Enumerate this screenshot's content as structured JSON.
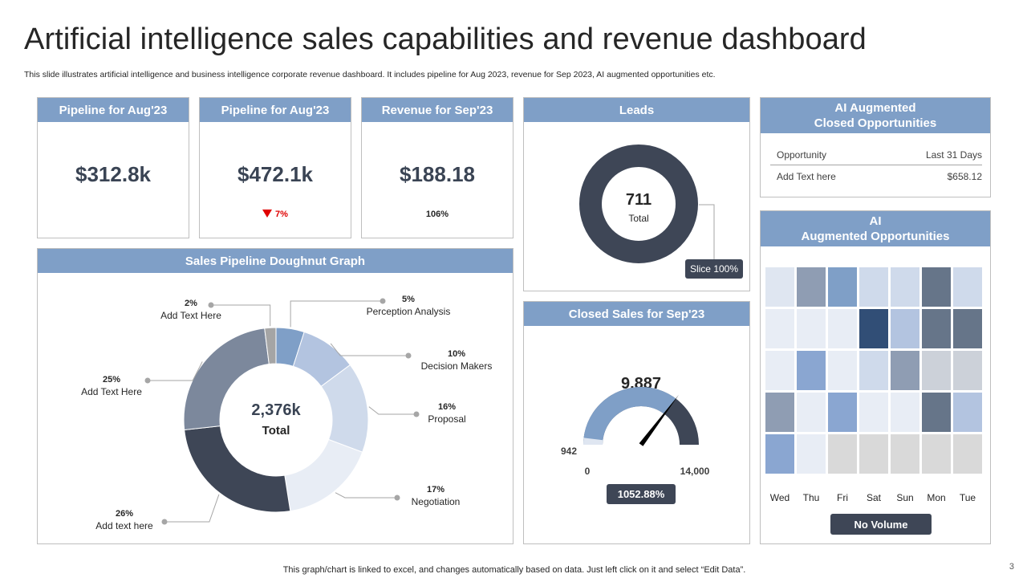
{
  "title": "Artificial intelligence sales capabilities and revenue dashboard",
  "subtitle": "This slide illustrates artificial intelligence and business intelligence corporate revenue dashboard. It includes pipeline for Aug 2023, revenue for Sep 2023, AI  augmented opportunities etc.",
  "kpis": [
    {
      "header": "Pipeline for Aug'23",
      "value": "$312.8k",
      "change": ""
    },
    {
      "header": "Pipeline for  Aug'23",
      "value": "$472.1k",
      "change": "7%"
    },
    {
      "header": "Revenue for Sep'23",
      "value": "$188.18",
      "change": "106%"
    }
  ],
  "leads": {
    "header": "Leads",
    "value": "711",
    "label": "Total",
    "slice_label": "Slice 100%"
  },
  "closed_sales": {
    "header": "Closed Sales for Sep'23",
    "value": "9,887",
    "min": "0",
    "max": "14,000",
    "marker": "942",
    "percent": "1052.88%",
    "fill_fraction": 0.706
  },
  "ai_closed": {
    "header_line1": "AI Augmented",
    "header_line2": "Closed Opportunities",
    "col1": "Opportunity",
    "col2": "Last 31 Days",
    "row_label": "Add Text here",
    "row_value": "$658.12"
  },
  "ai_opps": {
    "header_line1": "AI",
    "header_line2": "Augmented Opportunities",
    "days": [
      "Wed",
      "Thu",
      "Fri",
      "Sat",
      "Sun",
      "Mon",
      "Tue"
    ],
    "button": "No Volume",
    "grid_colors": [
      [
        "#dfe6f1",
        "#8f9db3",
        "#7f9fc7",
        "#cfdaeb",
        "#cfdaeb",
        "#667589",
        "#cfdaeb"
      ],
      [
        "#e8edf5",
        "#e8edf5",
        "#e8edf5",
        "#314e76",
        "#b3c4e0",
        "#667589",
        "#667589"
      ],
      [
        "#e8edf5",
        "#8aa6d1",
        "#e8edf5",
        "#cfdaeb",
        "#8f9db3",
        "#ccd1d9",
        "#ccd1d9"
      ],
      [
        "#8f9db3",
        "#e8edf5",
        "#8aa6d1",
        "#e8edf5",
        "#e8edf5",
        "#667589",
        "#b3c4e0"
      ],
      [
        "#8aa6d1",
        "#e8edf5",
        "#d9d9d9",
        "#d9d9d9",
        "#d9d9d9",
        "#d9d9d9",
        "#d9d9d9"
      ]
    ]
  },
  "pipeline_doughnut": {
    "header": "Sales Pipeline Doughnut Graph",
    "total_value": "2,376k",
    "total_label": "Total"
  },
  "chart_data": {
    "type": "pie",
    "title": "Sales Pipeline Doughnut Graph",
    "series": [
      {
        "name": "Perception Analysis",
        "value": 5,
        "pct": "5%",
        "color": "#7f9fc7"
      },
      {
        "name": "Decision Makers",
        "value": 10,
        "pct": "10%",
        "color": "#b3c4e0"
      },
      {
        "name": "Proposal",
        "value": 16,
        "pct": "16%",
        "color": "#cfdaeb"
      },
      {
        "name": "Negotiation",
        "value": 17,
        "pct": "17%",
        "color": "#e8edf5"
      },
      {
        "name": "Add text here",
        "value": 26,
        "pct": "26%",
        "color": "#3e4656"
      },
      {
        "name": "Add Text Here",
        "value": 25,
        "pct": "25%",
        "color": "#7c889c"
      },
      {
        "name": "Add Text Here",
        "value": 2,
        "pct": "2%",
        "color": "#a5a5a5"
      }
    ]
  },
  "footer": "This graph/chart is linked to excel, and changes automatically based on data. Just left click on it and select “Edit Data”.",
  "page_number": "3"
}
